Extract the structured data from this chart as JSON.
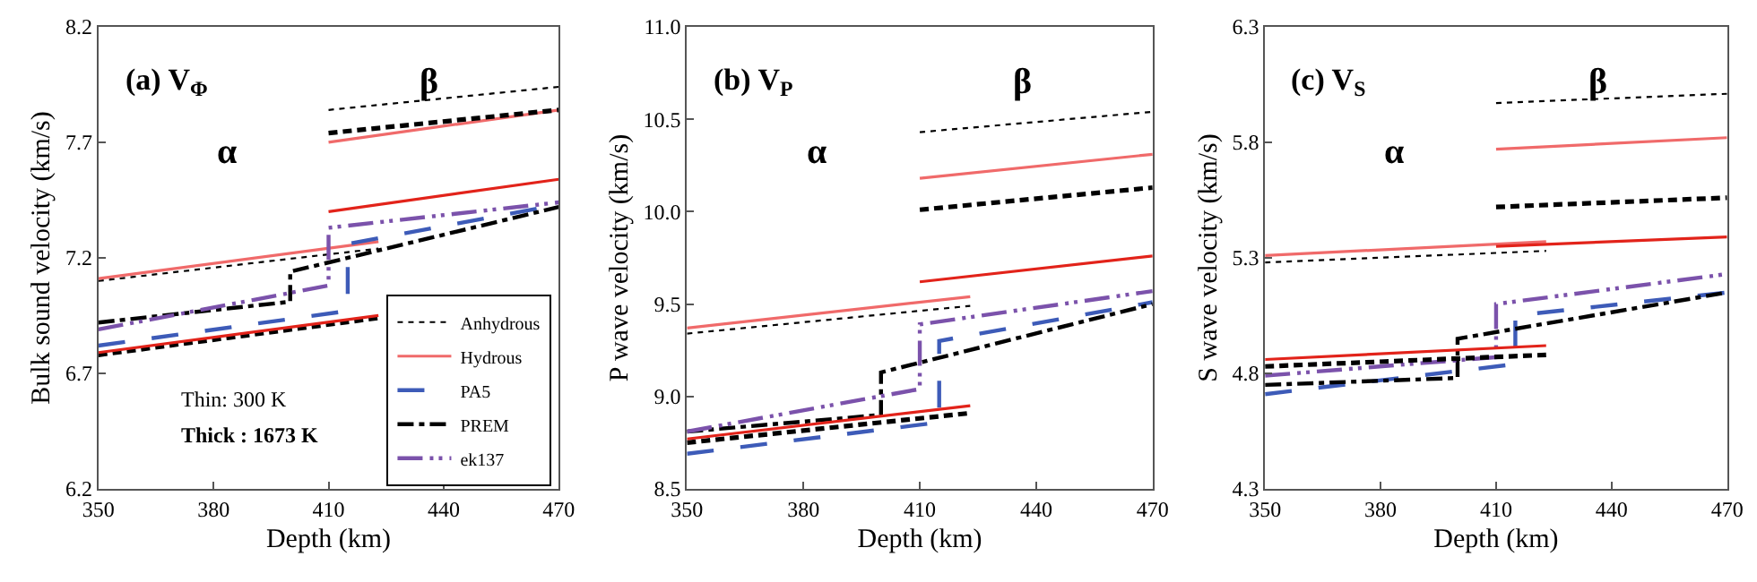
{
  "chart_data": [
    {
      "type": "line",
      "title": "(a) V$_{Φ}$",
      "xlabel": "Depth (km)",
      "ylabel": "Bulk sound velocity (km/s)",
      "xlim": [
        350,
        470
      ],
      "xticks": [
        350,
        380,
        410,
        440,
        470
      ],
      "ylim": [
        6.2,
        8.2
      ],
      "yticks": [
        {
          "value": 6.2,
          "label": "6.2"
        },
        {
          "value": 6.7,
          "label": "6.7"
        },
        {
          "value": 7.2,
          "label": "7.2"
        },
        {
          "value": 7.7,
          "label": "7.7"
        },
        {
          "value": 8.2,
          "label": "8.2"
        }
      ],
      "legend": "bottom right",
      "annotations": [
        "α",
        "β",
        "Thin: 300 K",
        "Thick : 1673 K"
      ],
      "series": [
        {
          "name": "Anhydrous",
          "color": "#000000",
          "line_style": "dotted",
          "x": [
            350,
            423
          ],
          "values": [
            7.1,
            7.24
          ]
        },
        {
          "name": "Hydrous",
          "color": "#f06a6a",
          "line_style": "solid",
          "x": [
            350,
            423
          ],
          "values": [
            7.11,
            7.27
          ]
        },
        {
          "name": "PA5",
          "color": "#3d5bb8",
          "line_style": "longdashed",
          "x": [
            350,
            415,
            415,
            470
          ],
          "values": [
            6.82,
            6.97,
            7.26,
            7.43
          ]
        },
        {
          "name": "PREM",
          "color": "#000000",
          "line_style": "dashdot",
          "x": [
            350,
            400,
            400,
            470
          ],
          "values": [
            6.92,
            7.01,
            7.14,
            7.42
          ]
        },
        {
          "name": "ek137",
          "color": "#7b52ab",
          "line_style": "dashdotdot",
          "x": [
            350,
            410,
            410,
            470
          ],
          "values": [
            6.89,
            7.08,
            7.33,
            7.44
          ]
        },
        {
          "color": "#000000",
          "line_style": "dotted",
          "x": [
            410,
            470
          ],
          "values": [
            7.84,
            7.94
          ]
        },
        {
          "color": "#f06a6a",
          "line_style": "solid",
          "x": [
            410,
            470
          ],
          "values": [
            7.7,
            7.84
          ]
        },
        {
          "color": "#000000",
          "line_style": "dashed",
          "x": [
            350,
            423
          ],
          "values": [
            6.78,
            6.94
          ]
        },
        {
          "color": "#000000",
          "line_style": "dashed",
          "x": [
            410,
            470
          ],
          "values": [
            7.74,
            7.84
          ]
        },
        {
          "color": "#e2231a",
          "line_style": "solid",
          "x": [
            350,
            423
          ],
          "values": [
            6.79,
            6.95
          ]
        },
        {
          "color": "#e2231a",
          "line_style": "solid",
          "x": [
            410,
            470
          ],
          "values": [
            7.4,
            7.54
          ]
        }
      ]
    },
    {
      "type": "line",
      "title": "(b) V$_{P}$",
      "xlabel": "Depth (km)",
      "ylabel": "P wave velocity (km/s)",
      "xlim": [
        350,
        470
      ],
      "xticks": [
        350,
        380,
        410,
        440,
        470
      ],
      "ylim": [
        8.5,
        11.0
      ],
      "yticks": [
        {
          "value": 8.5,
          "label": "8.5"
        },
        {
          "value": 9.0,
          "label": "9.0"
        },
        {
          "value": 9.5,
          "label": "9.5"
        },
        {
          "value": 10.0,
          "label": "10.0"
        },
        {
          "value": 10.5,
          "label": "10.5"
        },
        {
          "value": 11.0,
          "label": "11.0"
        }
      ],
      "annotations": [
        "α",
        "β"
      ],
      "series": [
        {
          "color": "#000000",
          "line_style": "dotted",
          "x": [
            350,
            423
          ],
          "values": [
            9.34,
            9.49
          ]
        },
        {
          "color": "#f06a6a",
          "line_style": "solid",
          "x": [
            350,
            423
          ],
          "values": [
            9.37,
            9.54
          ]
        },
        {
          "color": "#3d5bb8",
          "line_style": "longdashed",
          "x": [
            350,
            415,
            415,
            470
          ],
          "values": [
            8.69,
            8.86,
            9.3,
            9.51
          ]
        },
        {
          "color": "#000000",
          "line_style": "dashdot",
          "x": [
            350,
            400,
            400,
            470
          ],
          "values": [
            8.81,
            8.9,
            9.13,
            9.5
          ]
        },
        {
          "color": "#7b52ab",
          "line_style": "dashdotdot",
          "x": [
            350,
            410,
            410,
            470
          ],
          "values": [
            8.81,
            9.04,
            9.39,
            9.57
          ]
        },
        {
          "color": "#000000",
          "line_style": "dotted",
          "x": [
            410,
            470
          ],
          "values": [
            10.43,
            10.54
          ]
        },
        {
          "color": "#f06a6a",
          "line_style": "solid",
          "x": [
            410,
            470
          ],
          "values": [
            10.18,
            10.31
          ]
        },
        {
          "color": "#000000",
          "line_style": "dashed",
          "x": [
            350,
            423
          ],
          "values": [
            8.75,
            8.91
          ]
        },
        {
          "color": "#000000",
          "line_style": "dashed",
          "x": [
            410,
            470
          ],
          "values": [
            10.01,
            10.13
          ]
        },
        {
          "color": "#e2231a",
          "line_style": "solid",
          "x": [
            350,
            423
          ],
          "values": [
            8.77,
            8.95
          ]
        },
        {
          "color": "#e2231a",
          "line_style": "solid",
          "x": [
            410,
            470
          ],
          "values": [
            9.62,
            9.76
          ]
        }
      ]
    },
    {
      "type": "line",
      "title": "(c) V$_{S}$",
      "xlabel": "Depth (km)",
      "ylabel": "S wave velocity (km/s)",
      "xlim": [
        350,
        470
      ],
      "xticks": [
        350,
        380,
        410,
        440,
        470
      ],
      "ylim": [
        4.3,
        6.3
      ],
      "yticks": [
        {
          "value": 4.3,
          "label": "4.3"
        },
        {
          "value": 4.8,
          "label": "4.8"
        },
        {
          "value": 5.3,
          "label": "5.3"
        },
        {
          "value": 5.8,
          "label": "5.8"
        },
        {
          "value": 6.3,
          "label": "6.3"
        }
      ],
      "annotations": [
        "α",
        "β"
      ],
      "series": [
        {
          "color": "#000000",
          "line_style": "dotted",
          "x": [
            350,
            423
          ],
          "values": [
            5.28,
            5.33
          ]
        },
        {
          "color": "#f06a6a",
          "line_style": "solid",
          "x": [
            350,
            423
          ],
          "values": [
            5.31,
            5.37
          ]
        },
        {
          "color": "#3d5bb8",
          "line_style": "longdashed",
          "x": [
            350,
            415,
            415,
            470
          ],
          "values": [
            4.71,
            4.84,
            5.05,
            5.15
          ]
        },
        {
          "color": "#000000",
          "line_style": "dashdot",
          "x": [
            350,
            400,
            400,
            470
          ],
          "values": [
            4.75,
            4.78,
            4.95,
            5.15
          ]
        },
        {
          "color": "#7b52ab",
          "line_style": "dashdotdot",
          "x": [
            350,
            410,
            410,
            470
          ],
          "values": [
            4.79,
            4.87,
            5.1,
            5.23
          ]
        },
        {
          "color": "#000000",
          "line_style": "dotted",
          "x": [
            410,
            470
          ],
          "values": [
            5.97,
            6.01
          ]
        },
        {
          "color": "#f06a6a",
          "line_style": "solid",
          "x": [
            410,
            470
          ],
          "values": [
            5.77,
            5.82
          ]
        },
        {
          "color": "#000000",
          "line_style": "dashed",
          "x": [
            350,
            423
          ],
          "values": [
            4.83,
            4.88
          ]
        },
        {
          "color": "#000000",
          "line_style": "dashed",
          "x": [
            410,
            470
          ],
          "values": [
            5.52,
            5.56
          ]
        },
        {
          "color": "#e2231a",
          "line_style": "solid",
          "x": [
            350,
            423
          ],
          "values": [
            4.86,
            4.92
          ]
        },
        {
          "color": "#e2231a",
          "line_style": "solid",
          "x": [
            410,
            470
          ],
          "values": [
            5.35,
            5.39
          ]
        }
      ]
    }
  ]
}
